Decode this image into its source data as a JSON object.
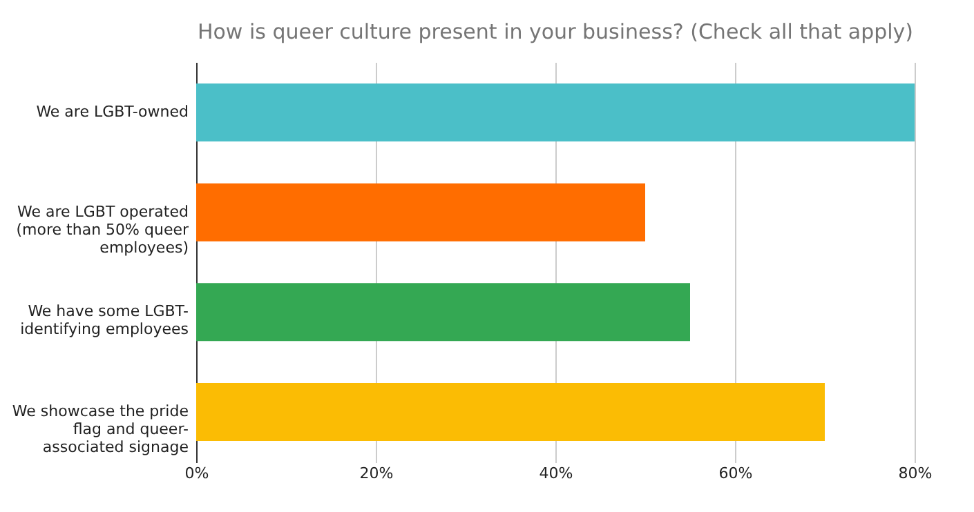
{
  "chart_data": {
    "type": "bar",
    "orientation": "horizontal",
    "title": "How is queer culture present in your business? (Check all that apply)",
    "categories": [
      "We are LGBT-owned",
      "We are LGBT operated\n(more than 50% queer\nemployees)",
      "We have some LGBT-\nidentifying employees",
      "We showcase the pride\nflag and queer-\nassociated signage"
    ],
    "values": [
      80,
      50,
      55,
      70
    ],
    "colors": [
      "#4bbfc8",
      "#ff6d00",
      "#34a853",
      "#fbbc04"
    ],
    "xlim": [
      0,
      80
    ],
    "xticks": [
      {
        "value": 0,
        "label": "0%"
      },
      {
        "value": 20,
        "label": "20%"
      },
      {
        "value": 40,
        "label": "40%"
      },
      {
        "value": 60,
        "label": "60%"
      },
      {
        "value": 80,
        "label": "80%"
      }
    ],
    "grid": "x"
  }
}
